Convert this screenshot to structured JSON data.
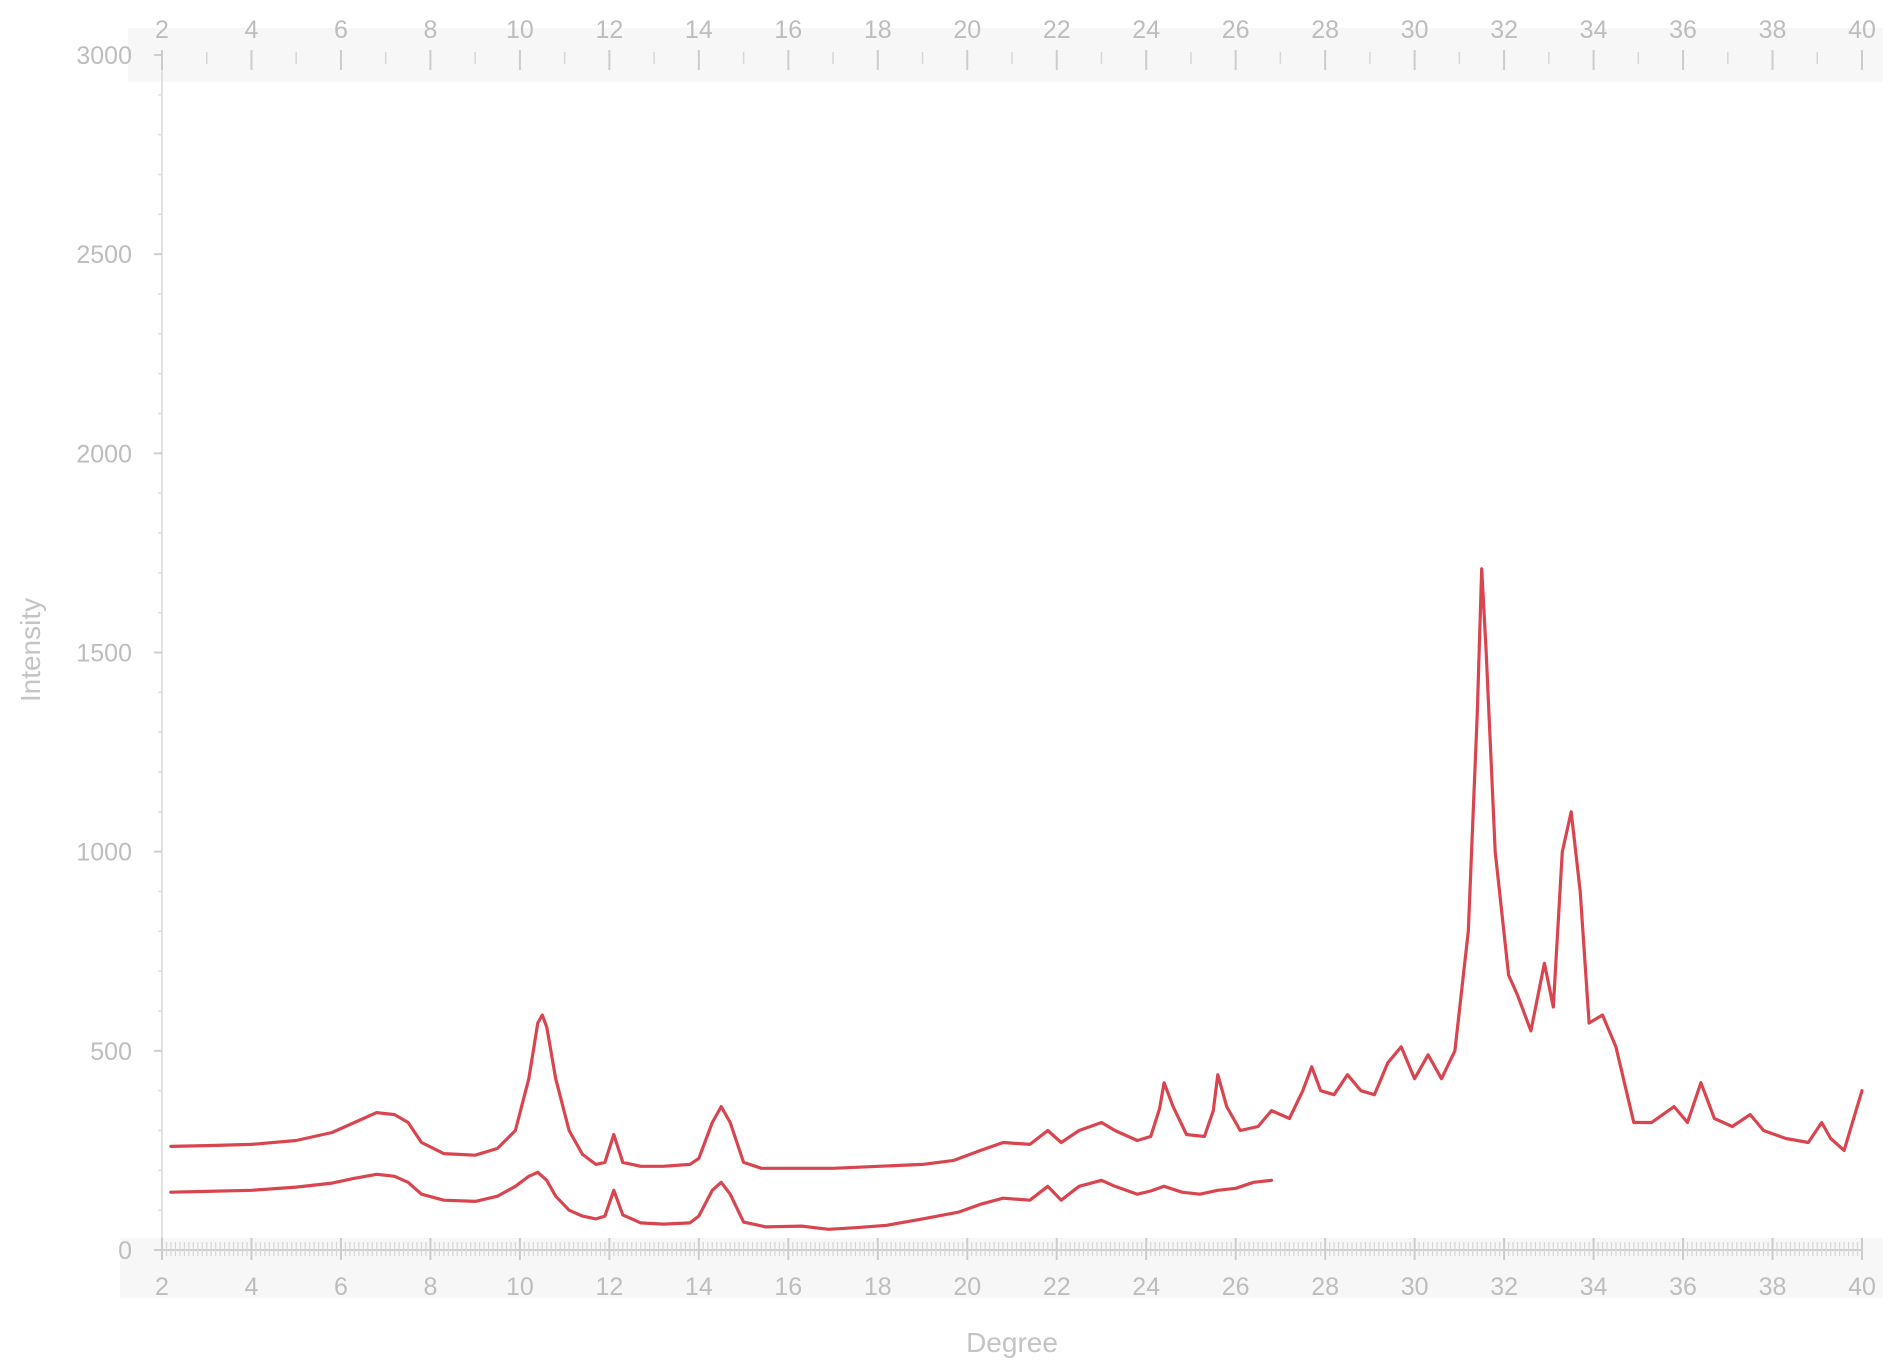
{
  "chart_data": {
    "type": "line",
    "title": "",
    "xlabel": "Degree",
    "ylabel": "Intensity",
    "xlim": [
      2,
      40
    ],
    "ylim": [
      0,
      3000
    ],
    "x_ticks": [
      2,
      4,
      6,
      8,
      10,
      12,
      14,
      16,
      18,
      20,
      22,
      24,
      26,
      28,
      30,
      32,
      34,
      36,
      38,
      40
    ],
    "y_ticks": [
      0,
      500,
      1000,
      1500,
      2000,
      2500,
      3000
    ],
    "grid": false,
    "legend": "none",
    "series": [
      {
        "color": "#d9454f",
        "points": [
          [
            2.2,
            260
          ],
          [
            3.0,
            262
          ],
          [
            4.0,
            265
          ],
          [
            5.0,
            275
          ],
          [
            5.8,
            295
          ],
          [
            6.3,
            320
          ],
          [
            6.8,
            345
          ],
          [
            7.2,
            340
          ],
          [
            7.5,
            320
          ],
          [
            7.8,
            270
          ],
          [
            8.3,
            242
          ],
          [
            9.0,
            238
          ],
          [
            9.5,
            255
          ],
          [
            9.9,
            300
          ],
          [
            10.2,
            430
          ],
          [
            10.4,
            570
          ],
          [
            10.5,
            590
          ],
          [
            10.6,
            560
          ],
          [
            10.8,
            430
          ],
          [
            11.1,
            300
          ],
          [
            11.4,
            240
          ],
          [
            11.7,
            215
          ],
          [
            11.9,
            220
          ],
          [
            12.1,
            290
          ],
          [
            12.3,
            220
          ],
          [
            12.7,
            210
          ],
          [
            13.2,
            210
          ],
          [
            13.8,
            215
          ],
          [
            14.0,
            230
          ],
          [
            14.3,
            320
          ],
          [
            14.5,
            360
          ],
          [
            14.7,
            320
          ],
          [
            15.0,
            220
          ],
          [
            15.4,
            205
          ],
          [
            17.0,
            205
          ],
          [
            19.0,
            215
          ],
          [
            19.7,
            225
          ],
          [
            20.3,
            250
          ],
          [
            20.8,
            270
          ],
          [
            21.4,
            265
          ],
          [
            21.8,
            300
          ],
          [
            22.1,
            270
          ],
          [
            22.5,
            300
          ],
          [
            23.0,
            320
          ],
          [
            23.3,
            300
          ],
          [
            23.8,
            275
          ],
          [
            24.1,
            285
          ],
          [
            24.3,
            355
          ],
          [
            24.4,
            420
          ],
          [
            24.6,
            360
          ],
          [
            24.9,
            290
          ],
          [
            25.3,
            285
          ],
          [
            25.5,
            350
          ],
          [
            25.6,
            440
          ],
          [
            25.8,
            360
          ],
          [
            26.1,
            300
          ],
          [
            26.5,
            310
          ],
          [
            26.8,
            350
          ],
          [
            27.2,
            330
          ],
          [
            27.5,
            400
          ],
          [
            27.7,
            460
          ],
          [
            27.9,
            400
          ],
          [
            28.2,
            390
          ],
          [
            28.5,
            440
          ],
          [
            28.8,
            400
          ],
          [
            29.1,
            390
          ],
          [
            29.4,
            470
          ],
          [
            29.7,
            510
          ],
          [
            30.0,
            430
          ],
          [
            30.3,
            490
          ],
          [
            30.6,
            430
          ],
          [
            30.9,
            500
          ],
          [
            31.2,
            800
          ],
          [
            31.4,
            1350
          ],
          [
            31.5,
            1710
          ],
          [
            31.6,
            1500
          ],
          [
            31.8,
            1000
          ],
          [
            32.1,
            690
          ],
          [
            32.3,
            640
          ],
          [
            32.6,
            550
          ],
          [
            32.9,
            720
          ],
          [
            33.1,
            610
          ],
          [
            33.3,
            1000
          ],
          [
            33.5,
            1100
          ],
          [
            33.7,
            900
          ],
          [
            33.9,
            570
          ],
          [
            34.2,
            590
          ],
          [
            34.5,
            510
          ],
          [
            34.9,
            320
          ],
          [
            35.3,
            320
          ],
          [
            35.8,
            360
          ],
          [
            36.1,
            320
          ],
          [
            36.4,
            420
          ],
          [
            36.7,
            330
          ],
          [
            37.1,
            310
          ],
          [
            37.5,
            340
          ],
          [
            37.8,
            300
          ],
          [
            38.3,
            280
          ],
          [
            38.8,
            270
          ],
          [
            39.1,
            320
          ],
          [
            39.3,
            280
          ],
          [
            39.6,
            250
          ],
          [
            40.0,
            400
          ]
        ]
      },
      {
        "color": "#d9454f",
        "points": [
          [
            2.2,
            145
          ],
          [
            3.0,
            147
          ],
          [
            4.0,
            150
          ],
          [
            5.0,
            158
          ],
          [
            5.8,
            168
          ],
          [
            6.3,
            180
          ],
          [
            6.8,
            190
          ],
          [
            7.2,
            185
          ],
          [
            7.5,
            170
          ],
          [
            7.8,
            140
          ],
          [
            8.3,
            125
          ],
          [
            9.0,
            122
          ],
          [
            9.5,
            135
          ],
          [
            9.9,
            160
          ],
          [
            10.2,
            185
          ],
          [
            10.4,
            195
          ],
          [
            10.6,
            175
          ],
          [
            10.8,
            135
          ],
          [
            11.1,
            100
          ],
          [
            11.4,
            85
          ],
          [
            11.7,
            78
          ],
          [
            11.9,
            85
          ],
          [
            12.1,
            150
          ],
          [
            12.3,
            88
          ],
          [
            12.7,
            68
          ],
          [
            13.2,
            65
          ],
          [
            13.8,
            68
          ],
          [
            14.0,
            85
          ],
          [
            14.3,
            150
          ],
          [
            14.5,
            170
          ],
          [
            14.7,
            140
          ],
          [
            15.0,
            70
          ],
          [
            15.5,
            58
          ],
          [
            16.3,
            60
          ],
          [
            16.9,
            52
          ],
          [
            17.5,
            56
          ],
          [
            18.2,
            62
          ],
          [
            19.0,
            78
          ],
          [
            19.8,
            95
          ],
          [
            20.3,
            115
          ],
          [
            20.8,
            130
          ],
          [
            21.4,
            125
          ],
          [
            21.8,
            160
          ],
          [
            22.1,
            125
          ],
          [
            22.5,
            160
          ],
          [
            23.0,
            175
          ],
          [
            23.3,
            160
          ],
          [
            23.8,
            140
          ],
          [
            24.1,
            148
          ],
          [
            24.4,
            160
          ],
          [
            24.8,
            145
          ],
          [
            25.2,
            140
          ],
          [
            25.6,
            150
          ],
          [
            26.0,
            155
          ],
          [
            26.4,
            170
          ],
          [
            26.8,
            175
          ]
        ]
      }
    ]
  }
}
